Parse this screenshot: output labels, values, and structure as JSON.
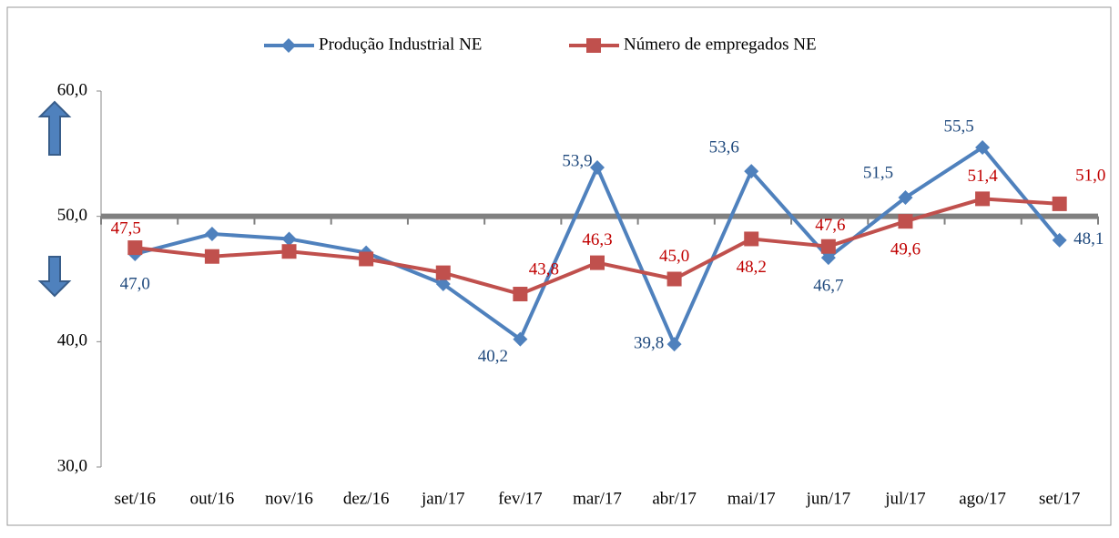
{
  "chart_data": {
    "type": "line",
    "categories": [
      "set/16",
      "out/16",
      "nov/16",
      "dez/16",
      "jan/17",
      "fev/17",
      "mar/17",
      "abr/17",
      "mai/17",
      "jun/17",
      "jul/17",
      "ago/17",
      "set/17"
    ],
    "series": [
      {
        "name": "Produção Industrial NE",
        "color": "#4f81bd",
        "marker": "diamond",
        "values": [
          47.0,
          48.6,
          48.2,
          47.1,
          44.6,
          40.2,
          53.9,
          39.8,
          53.6,
          46.7,
          51.5,
          55.5,
          48.1
        ],
        "value_labels": [
          "47,0",
          null,
          null,
          null,
          null,
          "40,2",
          "53,9",
          "39,8",
          "53,6",
          "46,7",
          "51,5",
          "55,5",
          "48,1"
        ]
      },
      {
        "name": "Número de empregados  NE",
        "color": "#c0504d",
        "marker": "square",
        "values": [
          47.5,
          46.8,
          47.2,
          46.6,
          45.5,
          43.8,
          46.3,
          45.0,
          48.2,
          47.6,
          49.6,
          51.4,
          51.0
        ],
        "value_labels": [
          "47,5",
          null,
          null,
          null,
          null,
          "43,8",
          "46,3",
          "45,0",
          "48,2",
          "47,6",
          "49,6",
          "51,4",
          "51,0"
        ]
      }
    ],
    "ylim": [
      30,
      60
    ],
    "yticks": [
      {
        "value": 30,
        "label": "30,0"
      },
      {
        "value": 40,
        "label": "40,0"
      },
      {
        "value": 50,
        "label": "50,0"
      },
      {
        "value": 60,
        "label": "60,0"
      }
    ],
    "x_axis_at": 50,
    "legend": "top"
  }
}
